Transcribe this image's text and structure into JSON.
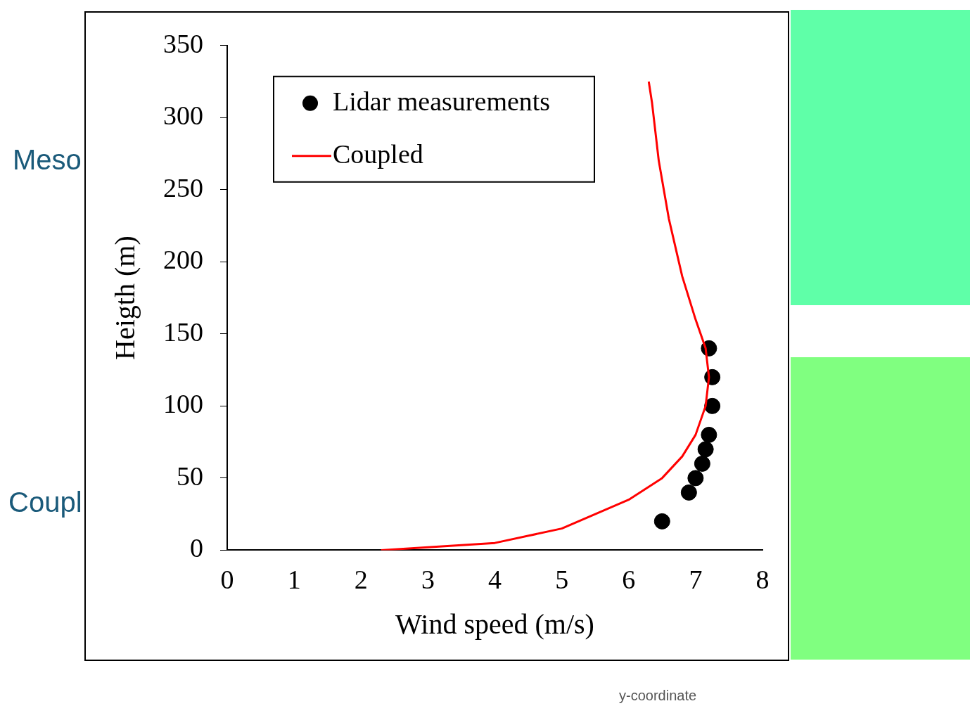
{
  "chart_data": {
    "type": "scatter",
    "xlabel": "Wind speed (m/s)",
    "ylabel": "Heigth (m)",
    "xlim": [
      0,
      8
    ],
    "xticks": [
      0,
      1,
      2,
      3,
      4,
      5,
      6,
      7,
      8
    ],
    "ylim": [
      0,
      350
    ],
    "yticks": [
      0,
      50,
      100,
      150,
      200,
      250,
      300,
      350
    ],
    "grid": false,
    "legend": "top left",
    "series": [
      {
        "name": "Lidar measurements",
        "marker": "circle",
        "color": "#000000",
        "x": [
          6.5,
          6.9,
          7.0,
          7.1,
          7.15,
          7.2,
          7.25,
          7.25,
          7.2
        ],
        "values": [
          20,
          40,
          50,
          60,
          70,
          80,
          100,
          120,
          140
        ]
      },
      {
        "name": "Coupled",
        "type": "line",
        "marker": "none",
        "color": "#ff0000",
        "x": [
          2.3,
          3,
          4,
          5,
          5.5,
          6,
          6.5,
          6.8,
          7.0,
          7.15,
          7.2,
          7.15,
          7.0,
          6.8,
          6.6,
          6.45,
          6.35,
          6.3
        ],
        "values": [
          0,
          2,
          5,
          15,
          25,
          35,
          50,
          65,
          80,
          100,
          120,
          140,
          160,
          190,
          230,
          270,
          310,
          325
        ]
      }
    ],
    "annotations": [
      "Meso",
      "Coupl",
      "y-coordinate"
    ]
  }
}
